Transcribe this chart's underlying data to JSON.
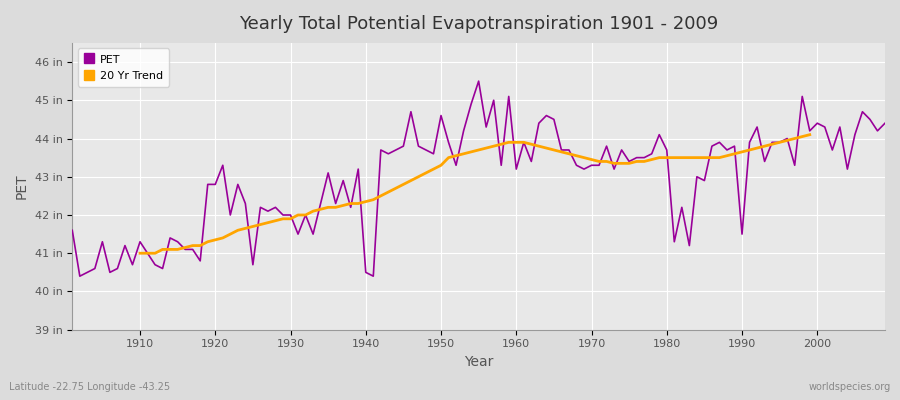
{
  "title": "Yearly Total Potential Evapotranspiration 1901 - 2009",
  "xlabel": "Year",
  "ylabel": "PET",
  "subtitle_left": "Latitude -22.75 Longitude -43.25",
  "subtitle_right": "worldspecies.org",
  "pet_color": "#990099",
  "trend_color": "#FFA500",
  "bg_color": "#E8E8E8",
  "plot_bg_color": "#E8E8E8",
  "ylim": [
    39,
    46.5
  ],
  "yticks": [
    39,
    40,
    41,
    42,
    43,
    44,
    45,
    46
  ],
  "ytick_labels": [
    "39 in",
    "40 in",
    "41 in",
    "42 in",
    "43 in",
    "44 in",
    "45 in",
    "46 in"
  ],
  "years": [
    1901,
    1902,
    1903,
    1904,
    1905,
    1906,
    1907,
    1908,
    1909,
    1910,
    1911,
    1912,
    1913,
    1914,
    1915,
    1916,
    1917,
    1918,
    1919,
    1920,
    1921,
    1922,
    1923,
    1924,
    1925,
    1926,
    1927,
    1928,
    1929,
    1930,
    1931,
    1932,
    1933,
    1934,
    1935,
    1936,
    1937,
    1938,
    1939,
    1940,
    1941,
    1942,
    1943,
    1944,
    1945,
    1946,
    1947,
    1948,
    1949,
    1950,
    1951,
    1952,
    1953,
    1954,
    1955,
    1956,
    1957,
    1958,
    1959,
    1960,
    1961,
    1962,
    1963,
    1964,
    1965,
    1966,
    1967,
    1968,
    1969,
    1970,
    1971,
    1972,
    1973,
    1974,
    1975,
    1976,
    1977,
    1978,
    1979,
    1980,
    1981,
    1982,
    1983,
    1984,
    1985,
    1986,
    1987,
    1988,
    1989,
    1990,
    1991,
    1992,
    1993,
    1994,
    1995,
    1996,
    1997,
    1998,
    1999,
    2000,
    2001,
    2002,
    2003,
    2004,
    2005,
    2006,
    2007,
    2008,
    2009
  ],
  "pet_values": [
    41.6,
    40.4,
    40.5,
    40.6,
    41.3,
    40.5,
    40.6,
    41.2,
    40.7,
    41.3,
    41.0,
    40.7,
    40.6,
    41.4,
    41.3,
    41.1,
    41.1,
    40.8,
    42.8,
    42.8,
    43.3,
    42.0,
    42.8,
    42.3,
    40.7,
    42.2,
    42.1,
    42.2,
    42.0,
    42.0,
    41.5,
    42.0,
    41.5,
    42.3,
    43.1,
    42.3,
    42.9,
    42.2,
    43.2,
    40.5,
    40.4,
    43.7,
    43.6,
    43.7,
    43.8,
    44.7,
    43.8,
    43.7,
    43.6,
    44.6,
    43.9,
    43.3,
    44.2,
    44.9,
    45.5,
    44.3,
    45.0,
    43.3,
    45.1,
    43.2,
    43.9,
    43.4,
    44.4,
    44.6,
    44.5,
    43.7,
    43.7,
    43.3,
    43.2,
    43.3,
    43.3,
    43.8,
    43.2,
    43.7,
    43.4,
    43.5,
    43.5,
    43.6,
    44.1,
    43.7,
    41.3,
    42.2,
    41.2,
    43.0,
    42.9,
    43.8,
    43.9,
    43.7,
    43.8,
    41.5,
    43.9,
    44.3,
    43.4,
    43.9,
    43.9,
    44.0,
    43.3,
    45.1,
    44.2,
    44.4,
    44.3,
    43.7,
    44.3,
    43.2,
    44.1,
    44.7,
    44.5,
    44.2,
    44.4
  ],
  "trend_values": [
    null,
    null,
    null,
    null,
    null,
    null,
    null,
    null,
    null,
    41.0,
    41.0,
    41.0,
    41.1,
    41.1,
    41.1,
    41.15,
    41.2,
    41.2,
    41.3,
    41.35,
    41.4,
    41.5,
    41.6,
    41.65,
    41.7,
    41.75,
    41.8,
    41.85,
    41.9,
    41.9,
    42.0,
    42.0,
    42.1,
    42.15,
    42.2,
    42.2,
    42.25,
    42.3,
    42.3,
    42.35,
    42.4,
    42.5,
    42.6,
    42.7,
    42.8,
    42.9,
    43.0,
    43.1,
    43.2,
    43.3,
    43.5,
    43.55,
    43.6,
    43.65,
    43.7,
    43.75,
    43.8,
    43.85,
    43.9,
    43.9,
    43.9,
    43.85,
    43.8,
    43.75,
    43.7,
    43.65,
    43.6,
    43.55,
    43.5,
    43.45,
    43.4,
    43.4,
    43.35,
    43.35,
    43.35,
    43.4,
    43.4,
    43.45,
    43.5,
    43.5,
    43.5,
    43.5,
    43.5,
    43.5,
    43.5,
    43.5,
    43.5,
    43.55,
    43.6,
    43.65,
    43.7,
    43.75,
    43.8,
    43.85,
    43.9,
    43.95,
    44.0,
    44.05,
    44.1,
    null,
    null,
    null,
    null,
    null,
    null,
    null,
    null,
    null,
    null
  ]
}
